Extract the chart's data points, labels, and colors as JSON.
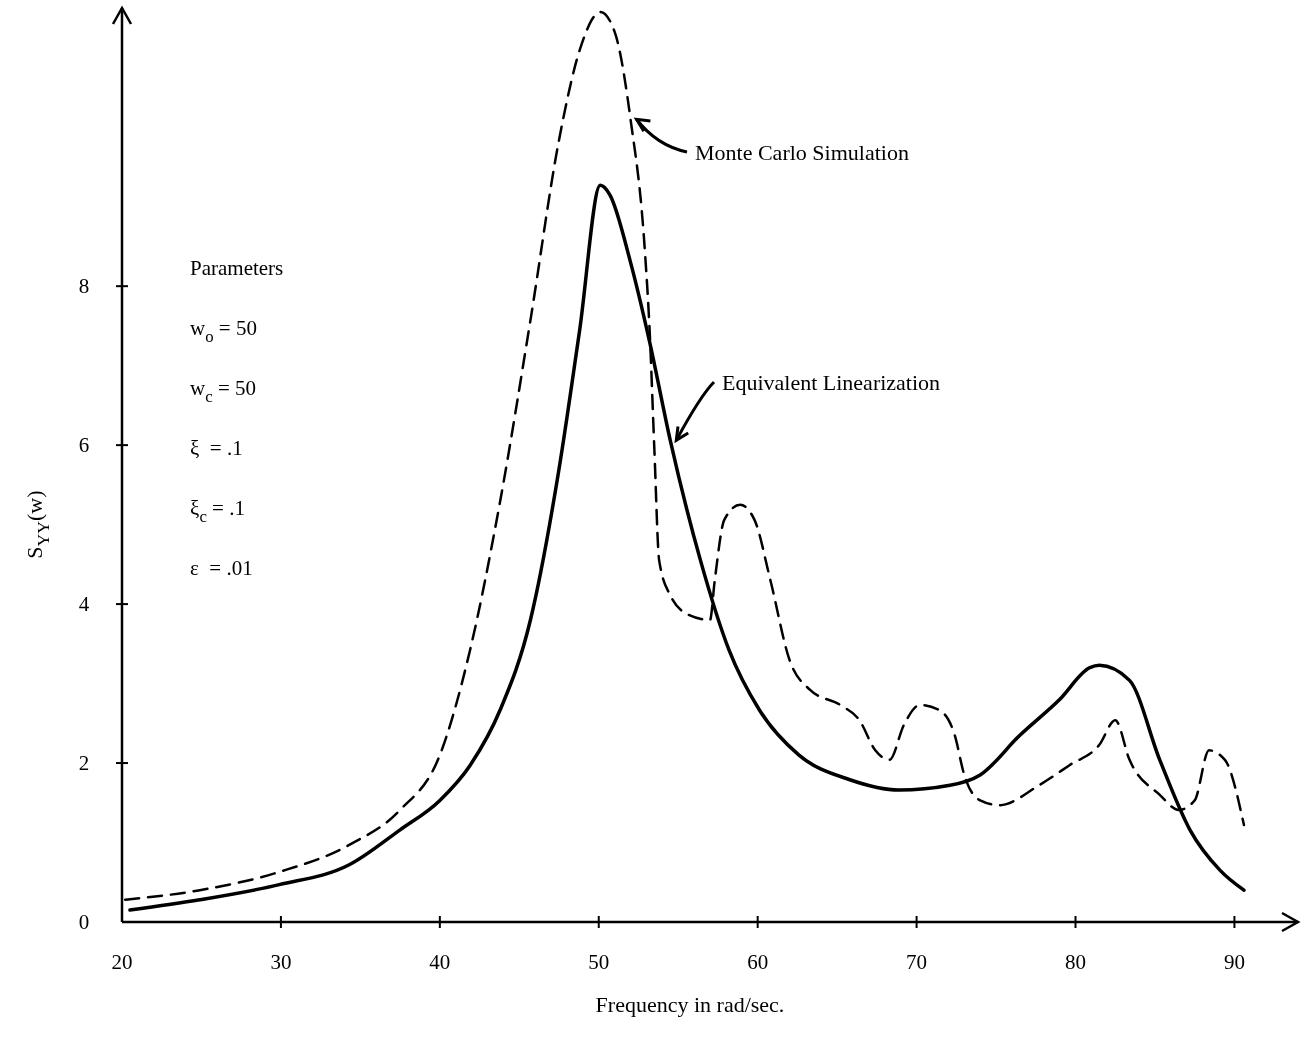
{
  "chart_data": {
    "type": "line",
    "xlabel": "Frequency in rad/sec.",
    "ylabel": "S$_{YY}$(w)",
    "xlim": [
      20,
      94
    ],
    "ylim": [
      0,
      11.5
    ],
    "xticks": [
      20,
      30,
      40,
      50,
      60,
      70,
      80,
      90
    ],
    "yticks": [
      0,
      2,
      4,
      6,
      8
    ],
    "grid": false,
    "series": [
      {
        "name": "Monte Carlo Simulation",
        "color": "#000000",
        "line_style": "dashed",
        "x": [
          20.2,
          24.9,
          29.9,
          34.3,
          37.5,
          40,
          41.9,
          43.8,
          45.7,
          47.5,
          48.8,
          50.1,
          51,
          52,
          52.9,
          53.2,
          53.5,
          53.8,
          54.5,
          55.7,
          57,
          57.3,
          57.9,
          58.9,
          59.8,
          60.8,
          62,
          63.3,
          65.2,
          66.4,
          67.4,
          68.3,
          69.2,
          70.2,
          71.4,
          72.4,
          73,
          74,
          75.2,
          77.7,
          79.6,
          81.5,
          82.5,
          83.4,
          85.3,
          86.5,
          87.5,
          88.4,
          89.4,
          90.6
        ],
        "values": [
          0.28,
          0.4,
          0.63,
          0.97,
          1.41,
          2.1,
          3.42,
          5.3,
          7.57,
          9.84,
          10.97,
          11.45,
          11.2,
          10.1,
          8.45,
          7.45,
          5.94,
          4.55,
          4.11,
          3.86,
          3.8,
          4.3,
          5.06,
          5.25,
          5.06,
          4.3,
          3.3,
          2.92,
          2.73,
          2.54,
          2.16,
          2.04,
          2.48,
          2.73,
          2.67,
          2.35,
          1.85,
          1.53,
          1.47,
          1.72,
          1.97,
          2.23,
          2.54,
          2.04,
          1.6,
          1.41,
          1.53,
          2.16,
          2.04,
          1.22
        ]
      },
      {
        "name": "Equivalent Linearization",
        "color": "#000000",
        "line_style": "solid",
        "x": [
          20.5,
          24.9,
          29.9,
          34.3,
          37.5,
          40,
          41.9,
          43.8,
          45.7,
          47.5,
          48.8,
          50.1,
          50.7,
          52,
          53.2,
          54.5,
          56.4,
          58.2,
          60.1,
          62.6,
          65.8,
          68.9,
          72.1,
          74,
          76.5,
          79,
          80.9,
          81.5,
          83.4,
          85.3,
          87.2,
          89.1,
          90.6
        ],
        "values": [
          0.15,
          0.28,
          0.47,
          0.72,
          1.16,
          1.53,
          1.97,
          2.67,
          3.8,
          5.7,
          7.45,
          9.27,
          9.15,
          8.3,
          7.3,
          6.06,
          4.55,
          3.42,
          2.67,
          2.1,
          1.79,
          1.66,
          1.72,
          1.85,
          2.35,
          2.8,
          3.2,
          3.23,
          3.04,
          2.04,
          1.16,
          0.65,
          0.4
        ]
      }
    ],
    "annotations": [
      "Parameters",
      "w$_{o}$ = 50",
      "w$_{c}$ = 50",
      "ξ  = .1",
      "ξ$_{c}$ = .1",
      "ε  = .01"
    ]
  }
}
